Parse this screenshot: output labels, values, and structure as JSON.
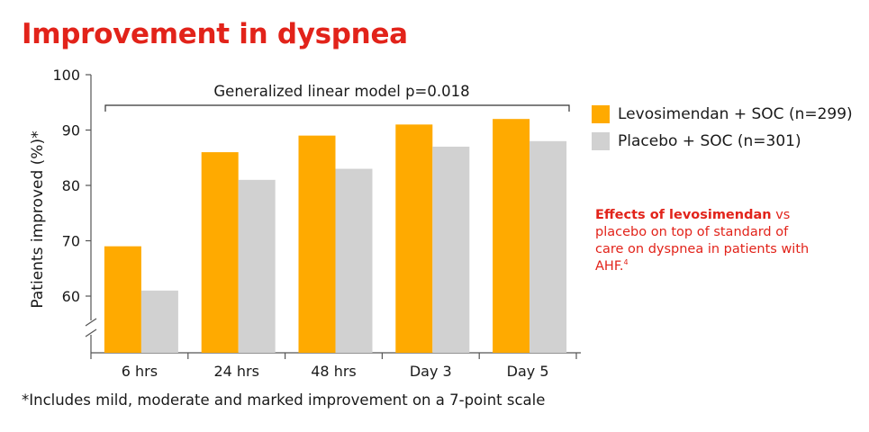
{
  "page": {
    "title": "Improvement in dyspnea",
    "footnote": "*Includes mild, moderate and marked improvement on a 7-point scale"
  },
  "callout": {
    "bold": "Effects of levosimendan",
    "text": " vs placebo on top of standard of care on dyspnea in patients with AHF.",
    "superscript": "4"
  },
  "colors": {
    "title": "#e2231a",
    "levosimendan": "#ffaa00",
    "placebo": "#d1d1d1",
    "axis": "#555555"
  },
  "chart_data": {
    "type": "bar",
    "title": "Improvement in dyspnea",
    "ylabel": "Patients improved (%)*",
    "xlabel": "",
    "categories": [
      "6 hrs",
      "24 hrs",
      "48 hrs",
      "Day 3",
      "Day 5"
    ],
    "series": [
      {
        "name": "Levosimendan + SOC (n=299)",
        "color": "#ffaa00",
        "values": [
          69,
          86,
          89,
          91,
          92
        ]
      },
      {
        "name": "Placebo + SOC (n=301)",
        "color": "#d1d1d1",
        "values": [
          61,
          81,
          83,
          87,
          88
        ]
      }
    ],
    "ylim": [
      60,
      100
    ],
    "yticks": [
      60,
      70,
      80,
      90,
      100
    ],
    "axis_break": true,
    "annotation": "Generalized linear model p=0.018",
    "legend_position": "right",
    "grid": false
  }
}
